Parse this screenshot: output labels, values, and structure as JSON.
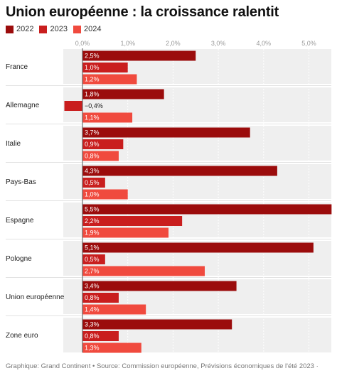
{
  "header": {
    "title": "Union européenne : la croissance ralentit"
  },
  "footer": {
    "source": "Graphique: Grand Continent • Source: Commission européenne, Prévisions économiques de l'été 2023 ·"
  },
  "chart_data": {
    "type": "bar",
    "orientation": "horizontal",
    "title": "Union européenne : la croissance ralentit",
    "categories": [
      "France",
      "Allemagne",
      "Italie",
      "Pays-Bas",
      "Espagne",
      "Pologne",
      "Union européenne",
      "Zone euro"
    ],
    "series": [
      {
        "name": "2022",
        "color": "#9b0c0c",
        "values": [
          2.5,
          1.8,
          3.7,
          4.3,
          5.5,
          5.1,
          3.4,
          3.3
        ],
        "labels": [
          "2,5%",
          "1,8%",
          "3,7%",
          "4,3%",
          "5,5%",
          "5,1%",
          "3,4%",
          "3,3%"
        ]
      },
      {
        "name": "2023",
        "color": "#c91e1e",
        "values": [
          1.0,
          -0.4,
          0.9,
          0.5,
          2.2,
          0.5,
          0.8,
          0.8
        ],
        "labels": [
          "1,0%",
          "−0,4%",
          "0,9%",
          "0,5%",
          "2,2%",
          "0,5%",
          "0,8%",
          "0,8%"
        ]
      },
      {
        "name": "2024",
        "color": "#f04a3e",
        "values": [
          1.2,
          1.1,
          0.8,
          1.0,
          1.9,
          2.7,
          1.4,
          1.3
        ],
        "labels": [
          "1,2%",
          "1,1%",
          "0,8%",
          "1,0%",
          "1,9%",
          "2,7%",
          "1,4%",
          "1,3%"
        ]
      }
    ],
    "xlim": [
      -0.4,
      5.5
    ],
    "xticks": [
      0,
      1,
      2,
      3,
      4,
      5
    ],
    "xtick_labels": [
      "0,0%",
      "1,0%",
      "2,0%",
      "3,0%",
      "4,0%",
      "5,0%"
    ],
    "legend_position": "top-left",
    "grid": true
  }
}
